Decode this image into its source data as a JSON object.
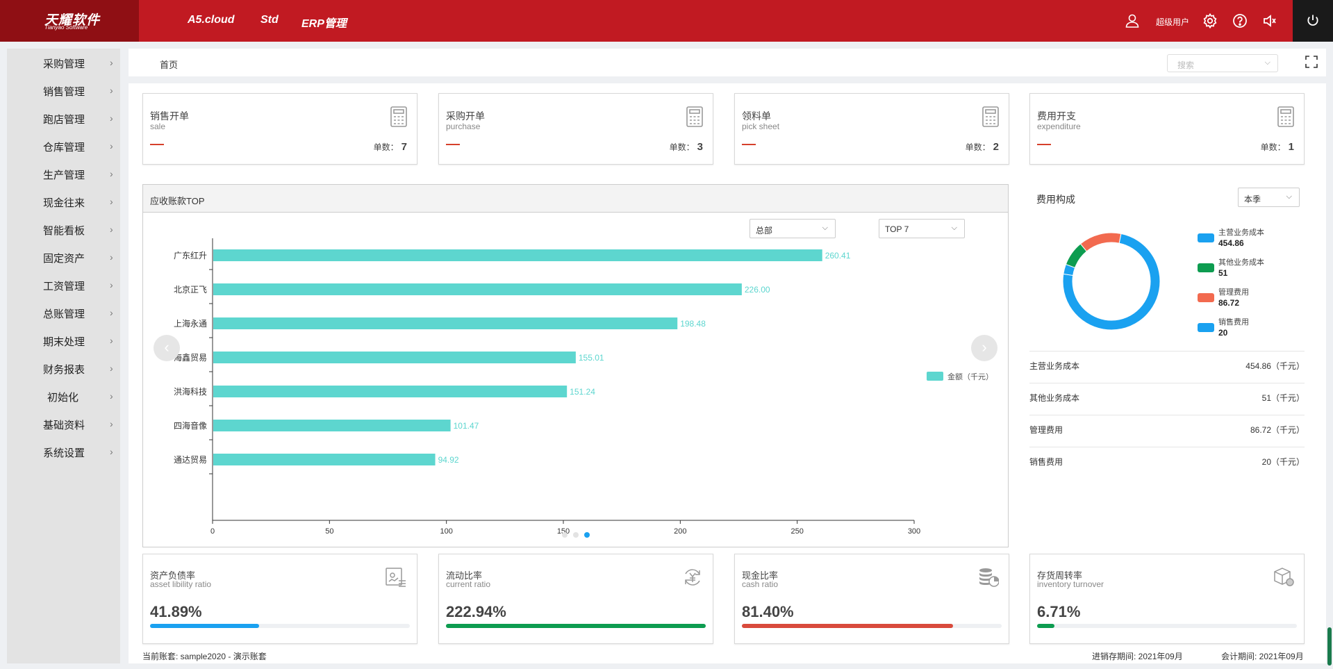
{
  "topbar": {
    "logo_cn": "天耀软件",
    "logo_en": "Tianyao Software",
    "nav": [
      "A5.cloud",
      "Std",
      "ERP管理"
    ],
    "user": "超级用户",
    "icons": [
      "user-icon",
      "gear-icon",
      "help-icon",
      "speaker-icon",
      "power-icon"
    ]
  },
  "sidebar": {
    "items": [
      {
        "label": "采购管理"
      },
      {
        "label": "销售管理"
      },
      {
        "label": "跑店管理"
      },
      {
        "label": "仓库管理"
      },
      {
        "label": "生产管理"
      },
      {
        "label": "现金往来"
      },
      {
        "label": "智能看板"
      },
      {
        "label": "固定资产"
      },
      {
        "label": "工资管理"
      },
      {
        "label": "总账管理"
      },
      {
        "label": "期末处理"
      },
      {
        "label": "财务报表"
      },
      {
        "label": "初始化"
      },
      {
        "label": "基础资料"
      },
      {
        "label": "系统设置"
      }
    ]
  },
  "breadcrumb": {
    "home": "首页",
    "search_placeholder": "搜索"
  },
  "cards": [
    {
      "title": "销售开单",
      "subtitle": "sale",
      "count_label": "单数：",
      "count": "7"
    },
    {
      "title": "采购开单",
      "subtitle": "purchase",
      "count_label": "单数：",
      "count": "3"
    },
    {
      "title": "领料单",
      "subtitle": "pick sheet",
      "count_label": "单数：",
      "count": "2"
    },
    {
      "title": "费用开支",
      "subtitle": "expenditure",
      "count_label": "单数：",
      "count": "1"
    }
  ],
  "receivable": {
    "title": "应收账款TOP",
    "filter1": "总部",
    "filter2": "TOP 7",
    "legend": "金额（千元）",
    "prev": "‹",
    "next": "›"
  },
  "chart_data": {
    "type": "bar",
    "orientation": "horizontal",
    "categories": [
      "广东红升",
      "北京正飞",
      "上海永通",
      "海鑫贸易",
      "洪海科技",
      "四海音像",
      "通达贸易"
    ],
    "series": [
      {
        "name": "金额（千元）",
        "values": [
          260.41,
          226.0,
          198.48,
          155.01,
          151.24,
          101.47,
          94.92
        ]
      }
    ],
    "value_labels": [
      "260.41",
      "226.00",
      "198.48",
      "155.01",
      "151.24",
      "101.47",
      "94.92"
    ],
    "xlim": [
      0,
      300
    ],
    "xticks": [
      "0",
      "50",
      "100",
      "150",
      "200",
      "250",
      "300"
    ],
    "color": "#5dd6cf",
    "legend_position": "right"
  },
  "fee": {
    "title": "费用构成",
    "period": "本季",
    "donut": [
      {
        "name": "主营业务成本",
        "value": 454.86,
        "label": "454.86",
        "color": "#1aa1f0"
      },
      {
        "name": "其他业务成本",
        "value": 51,
        "label": "51",
        "color": "#0d9c50"
      },
      {
        "name": "管理费用",
        "value": 86.72,
        "label": "86.72",
        "color": "#f26a4f"
      },
      {
        "name": "销售费用",
        "value": 20,
        "label": "20",
        "color": "#1aa1f0"
      }
    ],
    "rows": [
      {
        "name": "主营业务成本",
        "value": "454.86（千元）"
      },
      {
        "name": "其他业务成本",
        "value": "51（千元）"
      },
      {
        "name": "管理费用",
        "value": "86.72（千元）"
      },
      {
        "name": "销售费用",
        "value": "20（千元）"
      }
    ]
  },
  "ratios": [
    {
      "title": "资产负债率",
      "subtitle": "asset libility ratio",
      "pct": "41.89%",
      "value": 0.4189,
      "color": "#1aa1f0"
    },
    {
      "title": "流动比率",
      "subtitle": "current ratio",
      "pct": "222.94%",
      "value": 1.0,
      "color": "#0d9c50"
    },
    {
      "title": "现金比率",
      "subtitle": "cash ratio",
      "pct": "81.40%",
      "value": 0.814,
      "color": "#d94a3c"
    },
    {
      "title": "存货周转率",
      "subtitle": "inventory turnover",
      "pct": "6.71%",
      "value": 0.0671,
      "color": "#0d9c50"
    }
  ],
  "footer": {
    "account": "当前账套: sample2020 - 演示账套",
    "inv_period": "进销存期间: 2021年09月",
    "acc_period": "会计期间: 2021年09月"
  }
}
